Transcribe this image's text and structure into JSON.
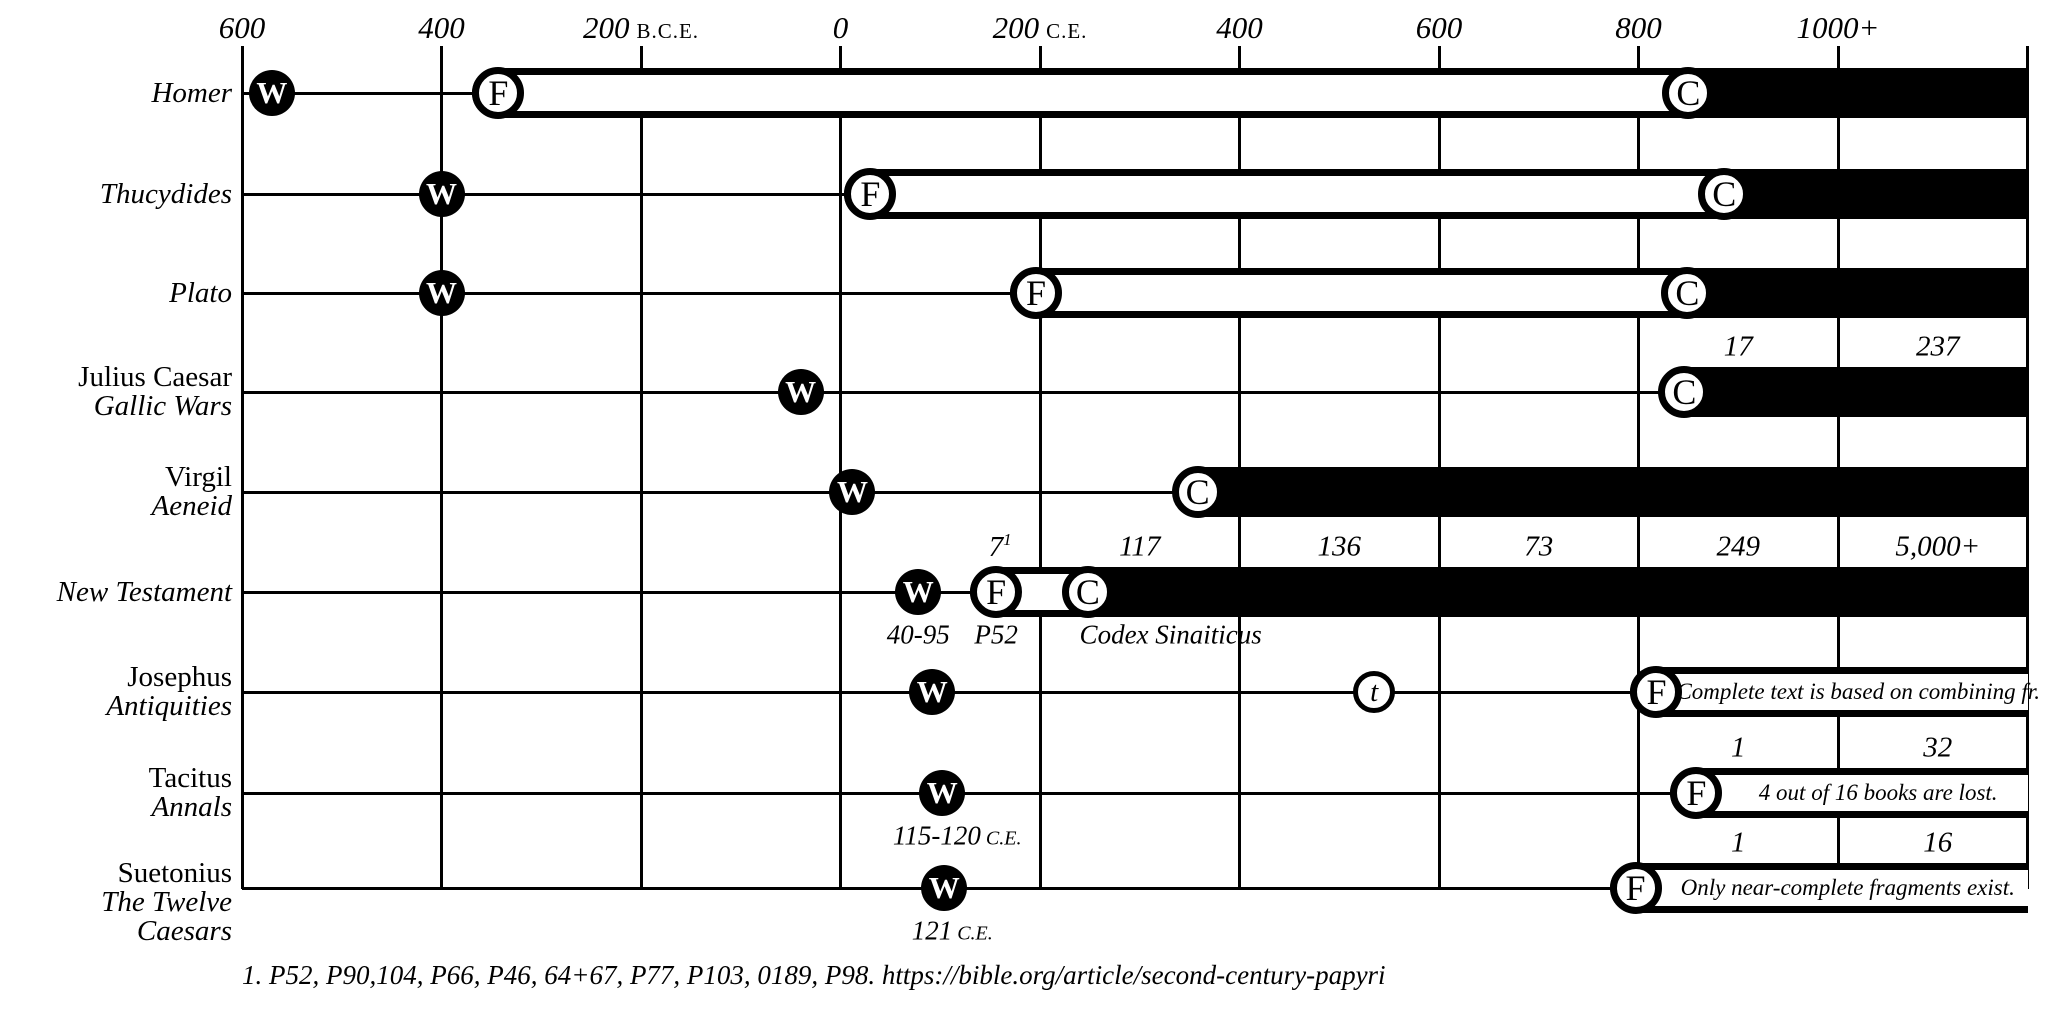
{
  "chart_data": {
    "type": "timeline",
    "layout_hint": "horizontal gantt-style manuscript timeline, grid on, no legend",
    "axis": {
      "unit": "year",
      "min_year": -600,
      "max_year": 1200,
      "tick_interval": 200,
      "ticks": [
        {
          "label": "600",
          "era": "",
          "year": -600
        },
        {
          "label": "400",
          "era": "",
          "year": -400
        },
        {
          "label": "200",
          "era": "B.C.E.",
          "year": -200
        },
        {
          "label": "0",
          "era": "",
          "year": 0
        },
        {
          "label": "200",
          "era": "C.E.",
          "year": 200
        },
        {
          "label": "400",
          "era": "",
          "year": 400
        },
        {
          "label": "600",
          "era": "",
          "year": 600
        },
        {
          "label": "800",
          "era": "",
          "year": 800
        },
        {
          "label": "1000+",
          "era": "",
          "year": 1000
        }
      ]
    },
    "marker_letters": [
      "W",
      "F",
      "C",
      "t"
    ],
    "rows": [
      {
        "slug": "homer",
        "label_lines": [
          {
            "text": "Homer",
            "italic": true
          }
        ],
        "markers": [
          {
            "letter": "W",
            "year": -570
          },
          {
            "letter": "F",
            "year": -343
          },
          {
            "letter": "C",
            "year": 850
          }
        ],
        "white_bar": {
          "start": -343,
          "end": 850
        },
        "black_bar": {
          "start": 850,
          "end": "edge"
        },
        "counts": [],
        "date_labels": [],
        "bar_note": null
      },
      {
        "slug": "thucydides",
        "label_lines": [
          {
            "text": "Thucydides",
            "italic": true
          }
        ],
        "markers": [
          {
            "letter": "W",
            "year": -400
          },
          {
            "letter": "F",
            "year": 30
          },
          {
            "letter": "C",
            "year": 886
          }
        ],
        "white_bar": {
          "start": 30,
          "end": 886
        },
        "black_bar": {
          "start": 886,
          "end": "edge"
        },
        "counts": [],
        "date_labels": [],
        "bar_note": null
      },
      {
        "slug": "plato",
        "label_lines": [
          {
            "text": "Plato",
            "italic": true
          }
        ],
        "markers": [
          {
            "letter": "W",
            "year": -400
          },
          {
            "letter": "F",
            "year": 196
          },
          {
            "letter": "C",
            "year": 849
          }
        ],
        "white_bar": {
          "start": 196,
          "end": 849
        },
        "black_bar": {
          "start": 849,
          "end": "edge"
        },
        "counts": [],
        "date_labels": [],
        "bar_note": null
      },
      {
        "slug": "julius-caesar",
        "label_lines": [
          {
            "text": "Julius Caesar",
            "italic": false
          },
          {
            "text": "Gallic Wars",
            "italic": true
          }
        ],
        "markers": [
          {
            "letter": "W",
            "year": -40
          },
          {
            "letter": "C",
            "year": 846
          }
        ],
        "white_bar": null,
        "black_bar": {
          "start": 846,
          "end": "edge"
        },
        "counts": [
          {
            "value": "17",
            "sup": "",
            "year": 900
          },
          {
            "value": "237",
            "sup": "",
            "year": 1100
          }
        ],
        "date_labels": [],
        "bar_note": null
      },
      {
        "slug": "virgil",
        "label_lines": [
          {
            "text": "Virgil",
            "italic": false
          },
          {
            "text": "Aeneid",
            "italic": true
          }
        ],
        "markers": [
          {
            "letter": "W",
            "year": 12
          },
          {
            "letter": "C",
            "year": 358
          }
        ],
        "white_bar": null,
        "black_bar": {
          "start": 358,
          "end": "edge"
        },
        "counts": [],
        "date_labels": [],
        "bar_note": null
      },
      {
        "slug": "new-testament",
        "label_lines": [
          {
            "text": "New Testament",
            "italic": true
          }
        ],
        "markers": [
          {
            "letter": "W",
            "year": 78
          },
          {
            "letter": "F",
            "year": 156
          },
          {
            "letter": "C",
            "year": 248
          }
        ],
        "white_bar": {
          "start": 156,
          "end": 248
        },
        "black_bar": {
          "start": 248,
          "end": "edge"
        },
        "counts": [
          {
            "value": "7",
            "sup": "1",
            "year": 160
          },
          {
            "value": "117",
            "sup": "",
            "year": 300
          },
          {
            "value": "136",
            "sup": "",
            "year": 500
          },
          {
            "value": "73",
            "sup": "",
            "year": 700
          },
          {
            "value": "249",
            "sup": "",
            "year": 900
          },
          {
            "value": "5,000+",
            "sup": "",
            "year": 1100
          }
        ],
        "date_labels": [
          {
            "text": "40-95",
            "era": "",
            "year": 78
          },
          {
            "text": "P52",
            "era": "",
            "year": 156
          },
          {
            "text": "Codex Sinaiticus",
            "era": "",
            "year": 331
          }
        ],
        "bar_note": null
      },
      {
        "slug": "josephus",
        "label_lines": [
          {
            "text": "Josephus",
            "italic": false
          },
          {
            "text": "Antiquities",
            "italic": true
          }
        ],
        "markers": [
          {
            "letter": "W",
            "year": 92
          },
          {
            "letter": "t",
            "year": 535
          },
          {
            "letter": "F",
            "year": 818
          }
        ],
        "white_bar": {
          "start": 818,
          "end": "edge"
        },
        "black_bar": null,
        "counts": [],
        "date_labels": [],
        "bar_note": "Complete text is based on combining fr."
      },
      {
        "slug": "tacitus",
        "label_lines": [
          {
            "text": "Tacitus",
            "italic": false
          },
          {
            "text": "Annals",
            "italic": true
          }
        ],
        "markers": [
          {
            "letter": "W",
            "year": 102
          },
          {
            "letter": "F",
            "year": 858
          }
        ],
        "white_bar": {
          "start": 858,
          "end": "edge"
        },
        "black_bar": null,
        "counts": [
          {
            "value": "1",
            "sup": "",
            "year": 900
          },
          {
            "value": "32",
            "sup": "",
            "year": 1100
          }
        ],
        "date_labels": [
          {
            "text": "115-120",
            "era": "C.E.",
            "year": 117
          }
        ],
        "bar_note": "4 out of 16 books are lost."
      },
      {
        "slug": "suetonius",
        "label_lines": [
          {
            "text": "Suetonius",
            "italic": false
          },
          {
            "text": "The Twelve Caesars",
            "italic": true
          }
        ],
        "markers": [
          {
            "letter": "W",
            "year": 104
          },
          {
            "letter": "F",
            "year": 797
          }
        ],
        "white_bar": {
          "start": 797,
          "end": "edge"
        },
        "black_bar": null,
        "counts": [
          {
            "value": "1",
            "sup": "",
            "year": 900
          },
          {
            "value": "16",
            "sup": "",
            "year": 1100
          }
        ],
        "date_labels": [
          {
            "text": "121",
            "era": "C.E.",
            "year": 112
          }
        ],
        "bar_note": "Only near-complete fragments exist."
      }
    ],
    "footnote": "1. P52, P90,104, P66, P46, 64+67, P77, P103, 0189, P98. https://bible.org/article/second-century-papyri"
  }
}
